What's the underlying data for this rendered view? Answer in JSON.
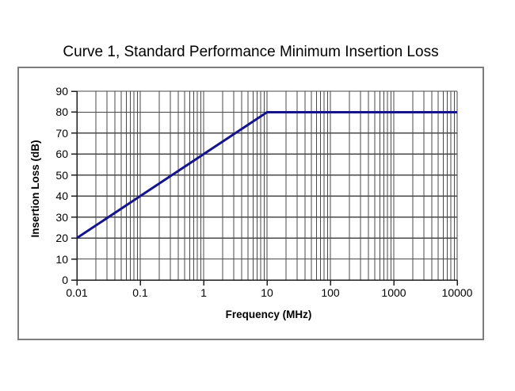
{
  "page": {
    "background": "#ffffff"
  },
  "chart_data": {
    "type": "line",
    "title": "Curve 1, Standard Performance Minimum Insertion Loss",
    "xlabel": "Frequency (MHz)",
    "ylabel": "Insertion Loss (dB)",
    "x_scale": "log",
    "y_scale": "linear",
    "xlim": [
      0.01,
      10000
    ],
    "ylim": [
      0,
      90
    ],
    "x_ticks": [
      0.01,
      0.1,
      1,
      10,
      100,
      1000,
      10000
    ],
    "x_tick_labels": [
      "0.01",
      "0.1",
      "1",
      "10",
      "100",
      "1000",
      "10000"
    ],
    "y_ticks": [
      0,
      10,
      20,
      30,
      40,
      50,
      60,
      70,
      80,
      90
    ],
    "grid": "major y every 10 dB; major x each decade; minor x log subdivisions 2-9",
    "legend": "none",
    "series": [
      {
        "name": "Curve 1 minimum insertion loss",
        "color": "#14148c",
        "points": [
          [
            0.01,
            20
          ],
          [
            10,
            80
          ],
          [
            10000,
            80
          ]
        ]
      }
    ],
    "colors": {
      "grid": "#4a4a4a",
      "axis": "#1f1f1f",
      "frame_border": "#7d7d7d",
      "plot_background": "#ffffff",
      "text": "#000000"
    }
  }
}
